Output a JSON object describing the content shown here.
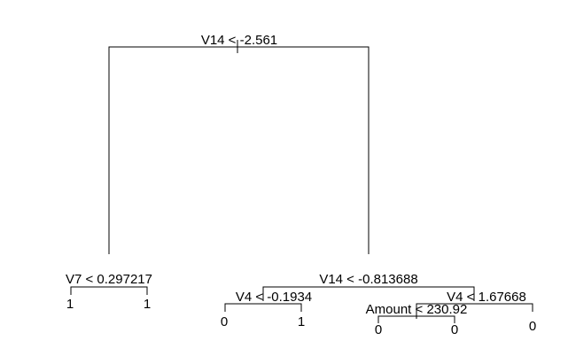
{
  "tree": {
    "background": "#ffffff",
    "stroke_color": "#000000",
    "root": {
      "split": "V14 < -2.561",
      "left": {
        "split": "V7 < 0.297217",
        "left": {
          "leaf": "1"
        },
        "right": {
          "leaf": "1"
        }
      },
      "right": {
        "split": "V14 < -0.813688",
        "left": {
          "split": "V4 < -0.1934",
          "left": {
            "leaf": "0"
          },
          "right": {
            "leaf": "1"
          }
        },
        "right": {
          "split": "V4 < 1.67668",
          "left": {
            "split": "Amount < 230.92",
            "left": {
              "leaf": "0"
            },
            "right": {
              "leaf": "0"
            }
          },
          "right": {
            "leaf": "0"
          }
        }
      }
    }
  }
}
